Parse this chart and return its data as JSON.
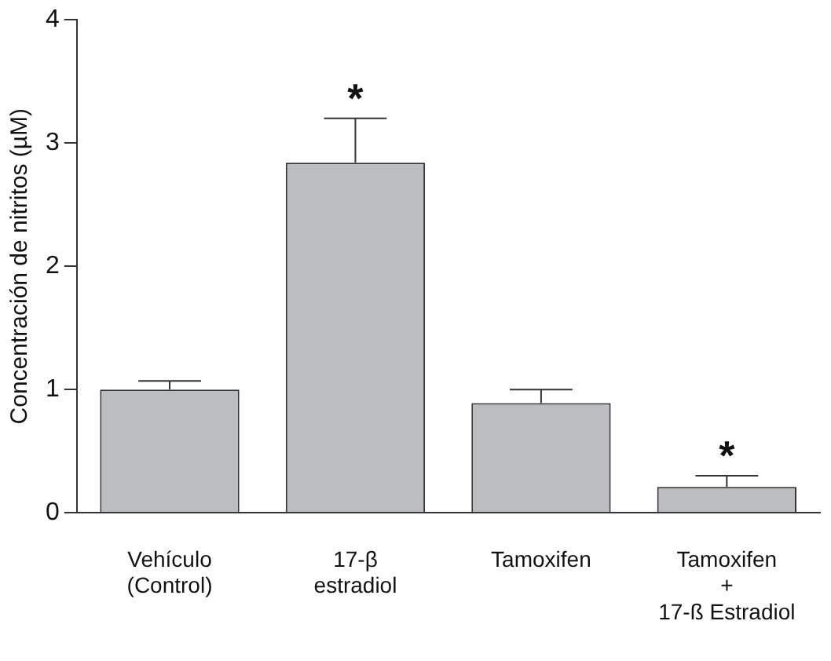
{
  "chart_data": {
    "type": "bar",
    "ylabel": "Concentración de nitritos (µM)",
    "categories": [
      "Vehículo\n(Control)",
      "17-β\nestradiol",
      "Tamoxifen",
      "Tamoxifen\n+\n17-ß Estradiol"
    ],
    "values": [
      1.0,
      2.84,
      0.89,
      0.21
    ],
    "errors": [
      [
        1.0,
        1.07
      ],
      [
        2.84,
        3.2
      ],
      [
        0.89,
        1.0
      ],
      [
        0.21,
        0.3
      ]
    ],
    "color": "#bcbdc1",
    "ylim": [
      0,
      4
    ],
    "yticks": [
      0,
      1,
      2,
      3,
      4
    ],
    "grid": false,
    "legend": false,
    "annotations": [
      {
        "text": "*",
        "x": "17-β\nestradiol",
        "y": 3.2
      },
      {
        "text": "*",
        "x": "Tamoxifen\n+\n17-ß Estradiol",
        "y": 0.3
      }
    ]
  }
}
